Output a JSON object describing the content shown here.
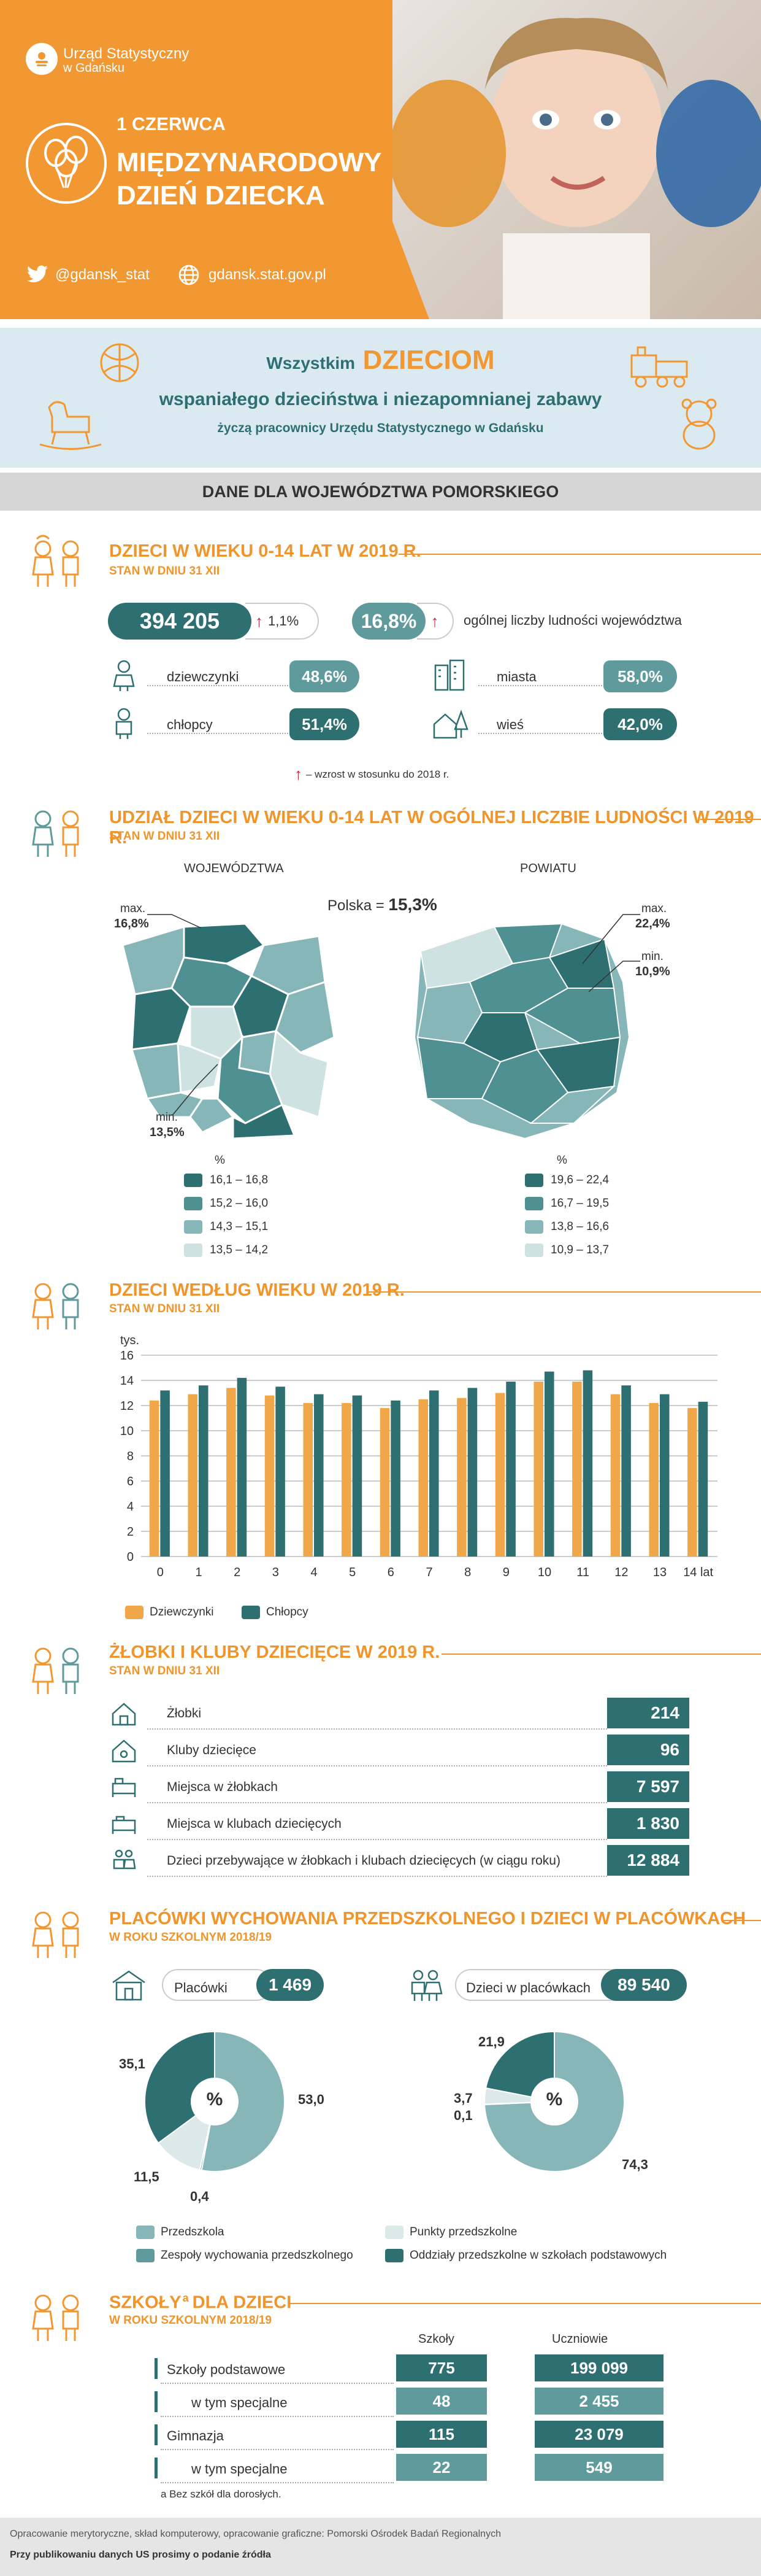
{
  "header": {
    "org_name_line1": "Urząd Statystyczny",
    "org_name_line2": "w Gdańsku",
    "date": "1 CZERWCA",
    "title_line1": "MIĘDZYNARODOWY",
    "title_line2": "DZIEŃ DZIECKA",
    "twitter": "@gdansk_stat",
    "website": "gdansk.stat.gov.pl"
  },
  "greeting": {
    "line1_pre": "Wszystkim",
    "line1_big": "DZIECIOM",
    "line2": "wspaniałego dzieciństwa i niezapomnianej zabawy",
    "line3": "życzą pracownicy Urzędu Statystycznego w Gdańsku"
  },
  "region_banner": "DANE DLA WOJEWÓDZTWA POMORSKIEGO",
  "sec1": {
    "title": "DZIECI W WIEKU 0-14 LAT W 2019 R.",
    "subtitle": "STAN W DNIU 31 XII",
    "total": "394 205",
    "growth": "1,1%",
    "share": "16,8%",
    "share_label": "ogólnej liczby ludności województwa",
    "girls_label": "dziewczynki",
    "girls_val": "48,6%",
    "boys_label": "chłopcy",
    "boys_val": "51,4%",
    "towns_label": "miasta",
    "towns_val": "58,0%",
    "village_label": "wieś",
    "village_val": "42,0%",
    "note": "– wzrost w stosunku do 2018 r."
  },
  "sec2": {
    "title": "UDZIAŁ DZIECI W WIEKU 0-14 LAT W OGÓLNEJ LICZBIE LUDNOŚCI W 2019 R.",
    "subtitle": "STAN W DNIU 31 XII",
    "map1_title": "WOJEWÓDZTWA",
    "map2_title": "POWIATU",
    "poland_label": "Polska =",
    "poland_val": "15,3%",
    "m1_max_label": "max.",
    "m1_max_val": "16,8%",
    "m1_min_label": "min.",
    "m1_min_val": "13,5%",
    "m2_max_label": "max.",
    "m2_max_val": "22,4%",
    "m2_min_label": "min.",
    "m2_min_val": "10,9%",
    "legend_unit": "%",
    "legend1": [
      "16,1 – 16,8",
      "15,2 – 16,0",
      "14,3 – 15,1",
      "13,5 – 14,2"
    ],
    "legend2": [
      "19,6 – 22,4",
      "16,7 – 19,5",
      "13,8 – 16,6",
      "10,9 – 13,7"
    ],
    "legend_colors": [
      "#2e6f72",
      "#4f9193",
      "#86b6b7",
      "#cfe2e2"
    ]
  },
  "sec3": {
    "title": "DZIECI WEDŁUG WIEKU W 2019 R.",
    "subtitle": "STAN W DNIU 31 XII",
    "legend_girls": "Dziewczynki",
    "legend_boys": "Chłopcy"
  },
  "chart_data": {
    "type": "bar",
    "ylabel": "tys.",
    "ylim": [
      0,
      16
    ],
    "yticks": [
      "0",
      "2",
      "4",
      "6",
      "8",
      "10",
      "12",
      "14",
      "16"
    ],
    "categories": [
      "0",
      "1",
      "2",
      "3",
      "4",
      "5",
      "6",
      "7",
      "8",
      "9",
      "10",
      "11",
      "12",
      "13",
      "14 lat"
    ],
    "series": [
      {
        "name": "Dziewczynki",
        "color": "#f0a74a",
        "values": [
          12.4,
          12.9,
          13.4,
          12.8,
          12.2,
          12.2,
          11.8,
          12.5,
          12.6,
          13.0,
          13.9,
          13.9,
          12.9,
          12.2,
          11.8
        ]
      },
      {
        "name": "Chłopcy",
        "color": "#2e6f72",
        "values": [
          13.2,
          13.6,
          14.2,
          13.5,
          12.9,
          12.8,
          12.4,
          13.2,
          13.4,
          13.9,
          14.7,
          14.8,
          13.6,
          12.9,
          12.3
        ]
      }
    ]
  },
  "sec4": {
    "title": "ŻŁOBKI I KLUBY DZIECIĘCE W 2019 R.",
    "subtitle": "STAN W DNIU 31 XII",
    "rows": [
      {
        "label": "Żłobki",
        "value": "214"
      },
      {
        "label": "Kluby dziecięce",
        "value": "96"
      },
      {
        "label": "Miejsca w żłobkach",
        "value": "7 597"
      },
      {
        "label": "Miejsca w klubach dziecięcych",
        "value": "1 830"
      },
      {
        "label": "Dzieci przebywające w żłobkach i klubach dziecięcych (w ciągu roku)",
        "value": "12 884"
      }
    ]
  },
  "sec5": {
    "title": "PLACÓWKI WYCHOWANIA PRZEDSZKOLNEGO I DZIECI W PLACÓWKACH",
    "subtitle": "W ROKU SZKOLNYM 2018/19",
    "facilities_label": "Placówki",
    "facilities_val": "1 469",
    "children_label": "Dzieci w placówkach",
    "children_val": "89 540",
    "pie_center": "%",
    "pie1": [
      53.0,
      0.4,
      11.5,
      35.1
    ],
    "pie1_labels": [
      "53,0",
      "0,4",
      "11,5",
      "35,1"
    ],
    "pie2": [
      74.3,
      0.1,
      3.7,
      21.9
    ],
    "pie2_labels": [
      "74,3",
      "0,1",
      "3,7",
      "21,9"
    ],
    "pie_colors": [
      "#86b6b7",
      "#5f9a9c",
      "#dbe9e9",
      "#2e6f72"
    ],
    "legend": [
      "Przedszkola",
      "Zespoły wychowania przedszkolnego",
      "Punkty przedszkolne",
      "Oddziały przedszkolne w szkołach podstawowych"
    ]
  },
  "sec6": {
    "title_pre": "SZKOŁY",
    "title_sup": "a",
    "title_post": "DLA DZIECI",
    "subtitle": "W ROKU SZKOLNYM 2018/19",
    "col1": "Szkoły",
    "col2": "Uczniowie",
    "rows": [
      {
        "label": "Szkoły podstawowe",
        "schools": "775",
        "pupils": "199 099"
      },
      {
        "label": "w tym specjalne",
        "schools": "48",
        "pupils": "2 455"
      },
      {
        "label": "Gimnazja",
        "schools": "115",
        "pupils": "23 079"
      },
      {
        "label": "w tym specjalne",
        "schools": "22",
        "pupils": "549"
      }
    ],
    "footnote": "a Bez szkół dla dorosłych."
  },
  "footer": {
    "line1": "Opracowanie merytoryczne, skład komputerowy, opracowanie graficzne: Pomorski Ośrodek Badań Regionalnych",
    "line2": "Przy publikowaniu danych US prosimy o podanie źródła"
  }
}
